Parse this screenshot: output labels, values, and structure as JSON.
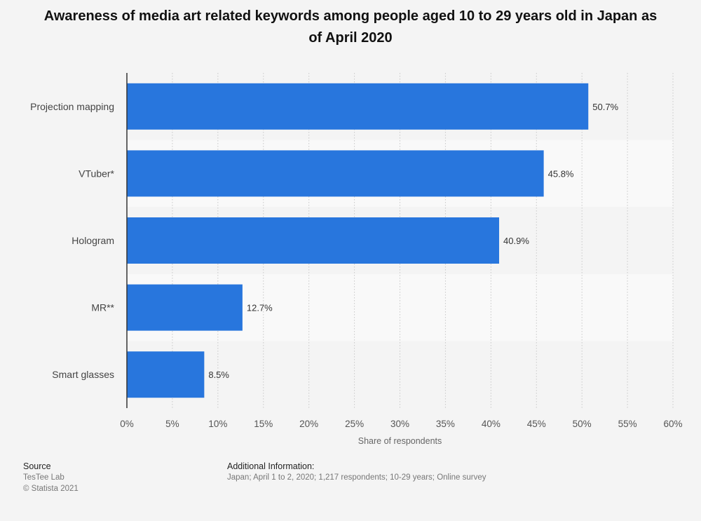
{
  "chart_data": {
    "type": "bar",
    "orientation": "horizontal",
    "title": "Awareness of media art related keywords among people aged 10 to 29 years old in Japan as of April 2020",
    "xlabel": "Share of respondents",
    "ylabel": "",
    "categories": [
      "Projection mapping",
      "VTuber*",
      "Hologram",
      "MR**",
      "Smart glasses"
    ],
    "values": [
      50.7,
      45.8,
      40.9,
      12.7,
      8.5
    ],
    "value_labels": [
      "50.7%",
      "45.8%",
      "40.9%",
      "12.7%",
      "8.5%"
    ],
    "xlim": [
      0,
      60
    ],
    "ticks": [
      0,
      5,
      10,
      15,
      20,
      25,
      30,
      35,
      40,
      45,
      50,
      55,
      60
    ],
    "tick_labels": [
      "0%",
      "5%",
      "10%",
      "15%",
      "20%",
      "25%",
      "30%",
      "35%",
      "40%",
      "45%",
      "50%",
      "55%",
      "60%"
    ],
    "grid": true,
    "bar_color": "#2876dd"
  },
  "footer": {
    "source_heading": "Source",
    "source_name": "TesTee Lab",
    "copyright": "© Statista 2021",
    "additional_heading": "Additional Information:",
    "additional_text": "Japan; April 1 to 2, 2020; 1,217 respondents; 10-29 years; Online survey"
  }
}
